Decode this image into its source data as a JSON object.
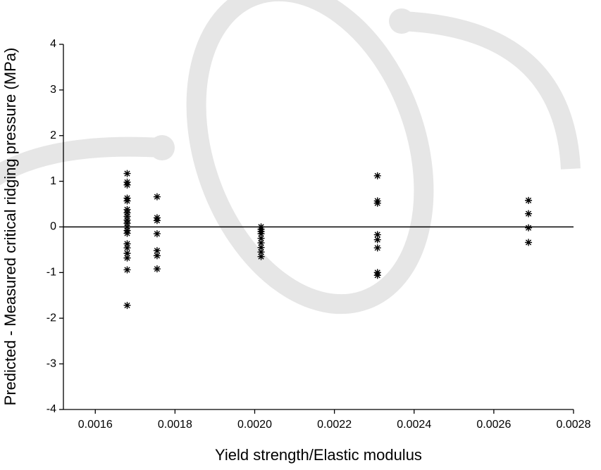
{
  "chart_data": {
    "type": "scatter",
    "xlabel": "Yield strength/Elastic modulus",
    "ylabel": "Predicted - Measured critical ridging pressure (MPa)",
    "x": [
      0.00168,
      0.00168,
      0.00168,
      0.00168,
      0.00168,
      0.00168,
      0.00168,
      0.00168,
      0.00168,
      0.00168,
      0.00168,
      0.00168,
      0.00168,
      0.00168,
      0.00168,
      0.00168,
      0.00168,
      0.00168,
      0.00168,
      0.001755,
      0.001755,
      0.001755,
      0.001755,
      0.001755,
      0.001755,
      0.001755,
      0.002016,
      0.002016,
      0.002016,
      0.002016,
      0.002016,
      0.002016,
      0.002016,
      0.002016,
      0.002016,
      0.002308,
      0.002308,
      0.002308,
      0.002308,
      0.002308,
      0.002308,
      0.002308,
      0.002308,
      0.002687,
      0.002687,
      0.002687,
      0.002687
    ],
    "y": [
      1.17,
      0.98,
      0.92,
      0.63,
      0.57,
      0.38,
      0.31,
      0.23,
      0.15,
      0.08,
      0.0,
      -0.08,
      -0.14,
      -0.37,
      -0.46,
      -0.58,
      -0.68,
      -0.94,
      -1.72,
      0.66,
      0.2,
      0.14,
      -0.15,
      -0.52,
      -0.63,
      -0.92,
      0,
      -0.05,
      -0.1,
      -0.15,
      -0.25,
      -0.35,
      -0.45,
      -0.55,
      -0.65,
      1.12,
      0.57,
      0.52,
      -0.17,
      -0.28,
      -0.46,
      -1.0,
      -1.06,
      0.58,
      0.29,
      -0.02,
      -0.34
    ],
    "color": "#000000",
    "reference_line": 0,
    "xlim": [
      0.00152,
      0.0028
    ],
    "xticks": [
      0.0016,
      0.0018,
      {
        "value": 0.002,
        "label": "0.0020"
      },
      0.0022,
      0.0024,
      0.0026,
      0.0028
    ],
    "ylim": [
      -4,
      4
    ],
    "yticks": [
      -4,
      -3,
      -2,
      -1,
      0,
      1,
      2,
      3,
      4
    ]
  }
}
